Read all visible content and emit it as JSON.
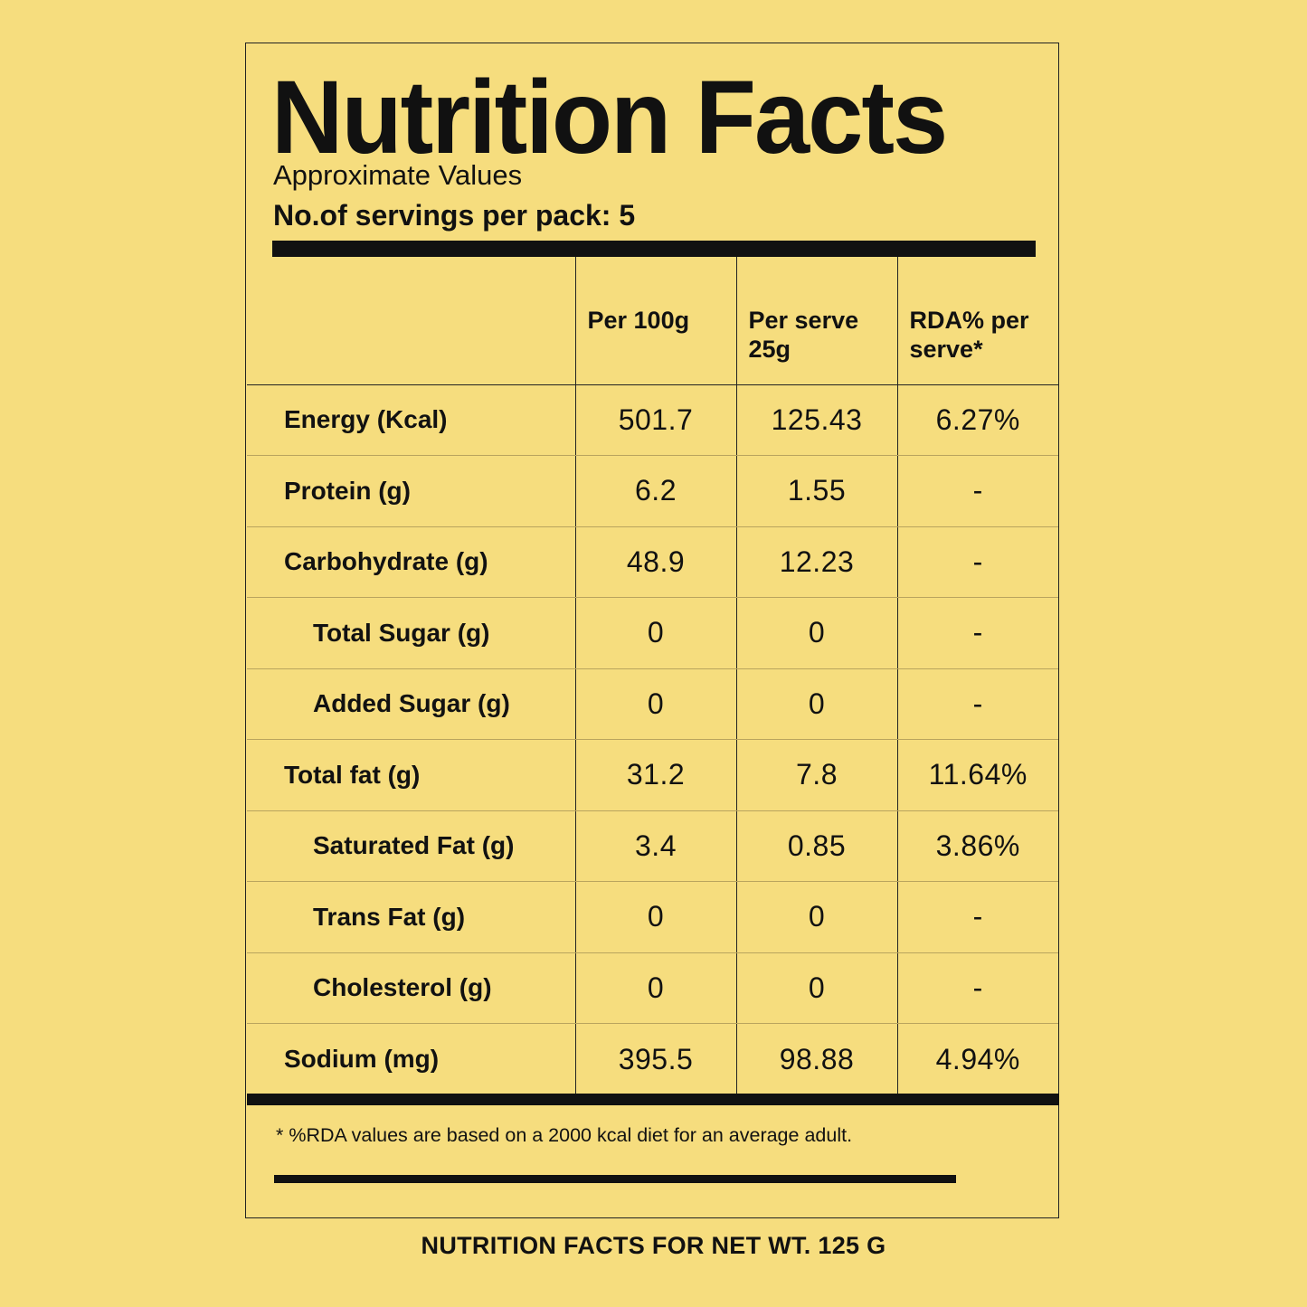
{
  "label": {
    "title": "Nutrition Facts",
    "subtitle": "Approximate Values",
    "servings": "No.of servings per pack: 5",
    "headers": [
      "Per 100g",
      "Per serve 25g",
      "RDA% per serve*"
    ],
    "rows": [
      {
        "name": "Energy (Kcal)",
        "per_100g": "501.7",
        "per_serve": "125.43",
        "rda": "6.27%",
        "indent": false
      },
      {
        "name": "Protein (g)",
        "per_100g": "6.2",
        "per_serve": "1.55",
        "rda": "-",
        "indent": false
      },
      {
        "name": "Carbohydrate (g)",
        "per_100g": "48.9",
        "per_serve": "12.23",
        "rda": "-",
        "indent": false
      },
      {
        "name": "Total Sugar (g)",
        "per_100g": "0",
        "per_serve": "0",
        "rda": "-",
        "indent": true
      },
      {
        "name": "Added Sugar (g)",
        "per_100g": "0",
        "per_serve": "0",
        "rda": "-",
        "indent": true
      },
      {
        "name": "Total fat (g)",
        "per_100g": "31.2",
        "per_serve": "7.8",
        "rda": "11.64%",
        "indent": false
      },
      {
        "name": "Saturated Fat (g)",
        "per_100g": "3.4",
        "per_serve": "0.85",
        "rda": "3.86%",
        "indent": true
      },
      {
        "name": "Trans Fat (g)",
        "per_100g": "0",
        "per_serve": "0",
        "rda": "-",
        "indent": true
      },
      {
        "name": "Cholesterol (g)",
        "per_100g": "0",
        "per_serve": "0",
        "rda": "-",
        "indent": true
      },
      {
        "name": "Sodium (mg)",
        "per_100g": "395.5",
        "per_serve": "98.88",
        "rda": "4.94%",
        "indent": false
      }
    ],
    "footnote": "* %RDA values are based on a 2000 kcal diet for an average adult."
  },
  "net_weight_caption": "NUTRITION FACTS FOR NET WT. 125 G",
  "colors": {
    "background": "#f6dd7e",
    "ink": "#111111"
  }
}
